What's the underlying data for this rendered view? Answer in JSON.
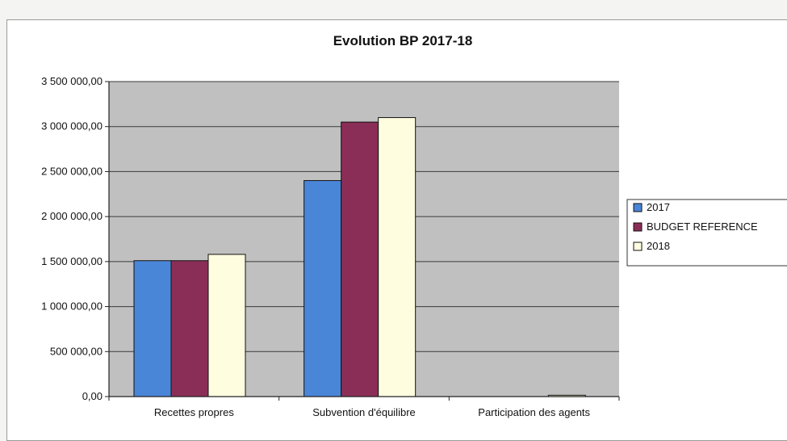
{
  "chart_data": {
    "type": "bar",
    "title": "Evolution BP 2017-18",
    "categories": [
      "Recettes propres",
      "Subvention d'équilibre",
      "Participation des agents"
    ],
    "series": [
      {
        "name": "2017",
        "values": [
          1510000,
          2400000,
          0
        ],
        "color": "#4a86d8"
      },
      {
        "name": "BUDGET REFERENCE",
        "values": [
          1510000,
          3050000,
          0
        ],
        "color": "#8b2e57"
      },
      {
        "name": "2018",
        "values": [
          1580000,
          3100000,
          15000
        ],
        "color": "#fffde0"
      }
    ],
    "ylim": [
      0,
      3500000
    ],
    "yticks": [
      "0,00",
      "500 000,00",
      "1 000 000,00",
      "1 500 000,00",
      "2 000 000,00",
      "2 500 000,00",
      "3 000 000,00",
      "3 500 000,00"
    ],
    "ytick_step": 500000,
    "grid": true,
    "plot_background": "#c0c0c0",
    "legend_position": "right"
  }
}
